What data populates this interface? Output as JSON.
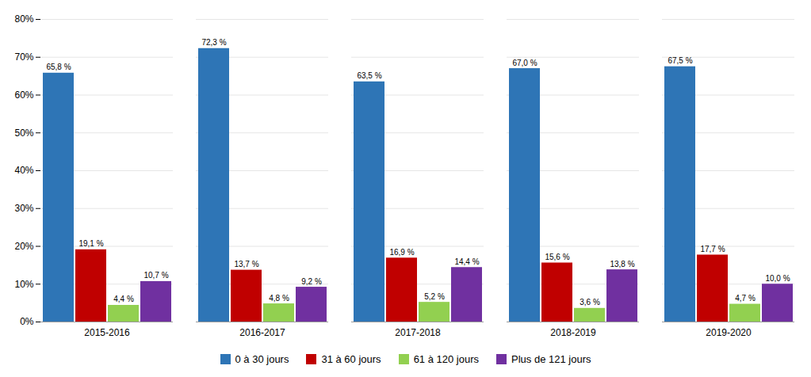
{
  "chart_data": {
    "type": "bar",
    "categories": [
      "2015-2016",
      "2016-2017",
      "2017-2018",
      "2018-2019",
      "2019-2020"
    ],
    "series": [
      {
        "name": "0 à 30 jours",
        "color": "#2E75B6",
        "values": [
          65.8,
          72.3,
          63.5,
          67.0,
          67.5
        ],
        "value_labels": [
          "65,8 %",
          "72,3 %",
          "63,5 %",
          "67,0 %",
          "67,5 %"
        ]
      },
      {
        "name": "31 à 60 jours",
        "color": "#C00000",
        "values": [
          19.1,
          13.7,
          16.9,
          15.6,
          17.7
        ],
        "value_labels": [
          "19,1 %",
          "13,7 %",
          "16,9 %",
          "15,6 %",
          "17,7 %"
        ]
      },
      {
        "name": "61 à 120 jours",
        "color": "#92D050",
        "values": [
          4.4,
          4.8,
          5.2,
          3.6,
          4.7
        ],
        "value_labels": [
          "4,4 %",
          "4,8 %",
          "5,2 %",
          "3,6 %",
          "4,7 %"
        ]
      },
      {
        "name": "Plus de 121 jours",
        "color": "#7030A0",
        "values": [
          10.7,
          9.2,
          14.4,
          13.8,
          10.0
        ],
        "value_labels": [
          "10,7 %",
          "9,2 %",
          "14,4 %",
          "13,8 %",
          "10,0 %"
        ]
      }
    ],
    "ylim": [
      0,
      80
    ],
    "yticks": [
      {
        "value": 0,
        "label": "0%"
      },
      {
        "value": 10,
        "label": "10%"
      },
      {
        "value": 20,
        "label": "20%"
      },
      {
        "value": 30,
        "label": "30%"
      },
      {
        "value": 40,
        "label": "40%"
      },
      {
        "value": 50,
        "label": "50%"
      },
      {
        "value": 60,
        "label": "60%"
      },
      {
        "value": 70,
        "label": "70%"
      },
      {
        "value": 80,
        "label": "80%"
      }
    ],
    "grid": true,
    "legend": "bottom",
    "data_labels": true
  }
}
